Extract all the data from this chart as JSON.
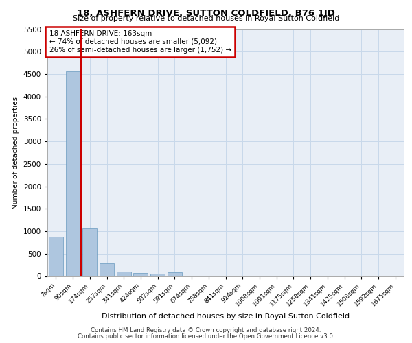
{
  "title": "18, ASHFERN DRIVE, SUTTON COLDFIELD, B76 1JD",
  "subtitle": "Size of property relative to detached houses in Royal Sutton Coldfield",
  "xlabel": "Distribution of detached houses by size in Royal Sutton Coldfield",
  "ylabel": "Number of detached properties",
  "footer_line1": "Contains HM Land Registry data © Crown copyright and database right 2024.",
  "footer_line2": "Contains public sector information licensed under the Open Government Licence v3.0.",
  "annotation_title": "18 ASHFERN DRIVE: 163sqm",
  "annotation_line1": "← 74% of detached houses are smaller (5,092)",
  "annotation_line2": "26% of semi-detached houses are larger (1,752) →",
  "categories": [
    "7sqm",
    "90sqm",
    "174sqm",
    "257sqm",
    "341sqm",
    "424sqm",
    "507sqm",
    "591sqm",
    "674sqm",
    "758sqm",
    "841sqm",
    "924sqm",
    "1008sqm",
    "1091sqm",
    "1175sqm",
    "1258sqm",
    "1341sqm",
    "1425sqm",
    "1508sqm",
    "1592sqm",
    "1675sqm"
  ],
  "values": [
    880,
    4560,
    1060,
    290,
    95,
    70,
    55,
    80,
    0,
    0,
    0,
    0,
    0,
    0,
    0,
    0,
    0,
    0,
    0,
    0,
    0
  ],
  "bar_color": "#aec6df",
  "bar_edge_color": "#6899be",
  "vline_color": "#cc0000",
  "vline_x": 1.5,
  "grid_color": "#c8d8ea",
  "bg_color": "#e8eef6",
  "annotation_box_color": "#cc0000",
  "ylim": [
    0,
    5500
  ],
  "yticks": [
    0,
    500,
    1000,
    1500,
    2000,
    2500,
    3000,
    3500,
    4000,
    4500,
    5000,
    5500
  ]
}
